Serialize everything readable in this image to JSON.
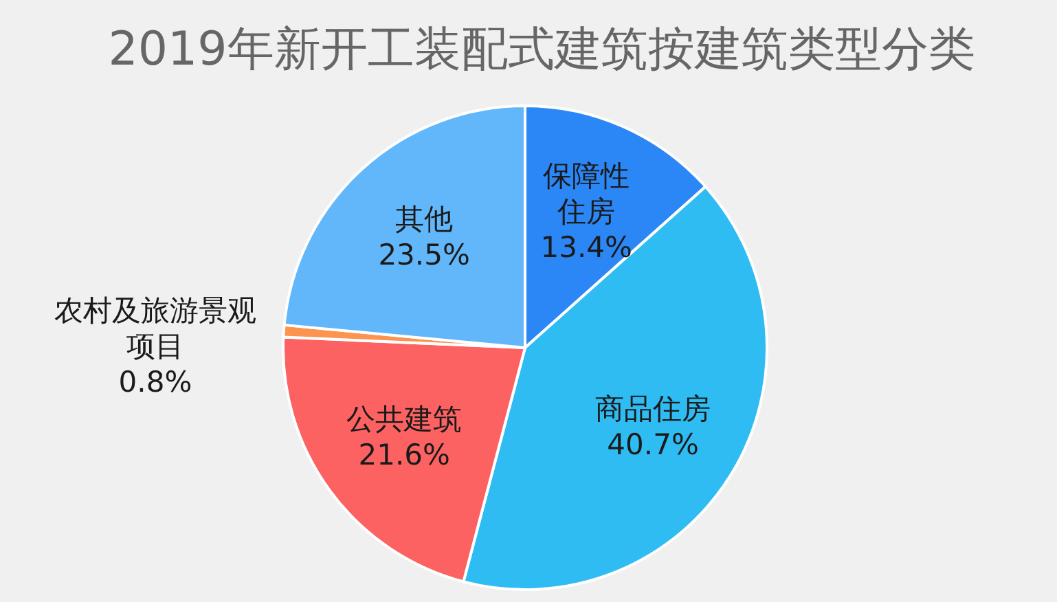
{
  "chart_data": {
    "type": "pie",
    "title": "2019年新开工装配式建筑按建筑类型分类",
    "categories": [
      "保障性住房",
      "商品住房",
      "公共建筑",
      "农村及旅游景观项目",
      "其他"
    ],
    "values": [
      13.4,
      40.7,
      21.6,
      0.8,
      23.5
    ],
    "colors": [
      "#2b87f5",
      "#2fbcf3",
      "#fd6262",
      "#fc9450",
      "#62b7fa"
    ],
    "value_labels": [
      "13.4%",
      "40.7%",
      "21.6%",
      "0.8%",
      "23.5%"
    ]
  }
}
